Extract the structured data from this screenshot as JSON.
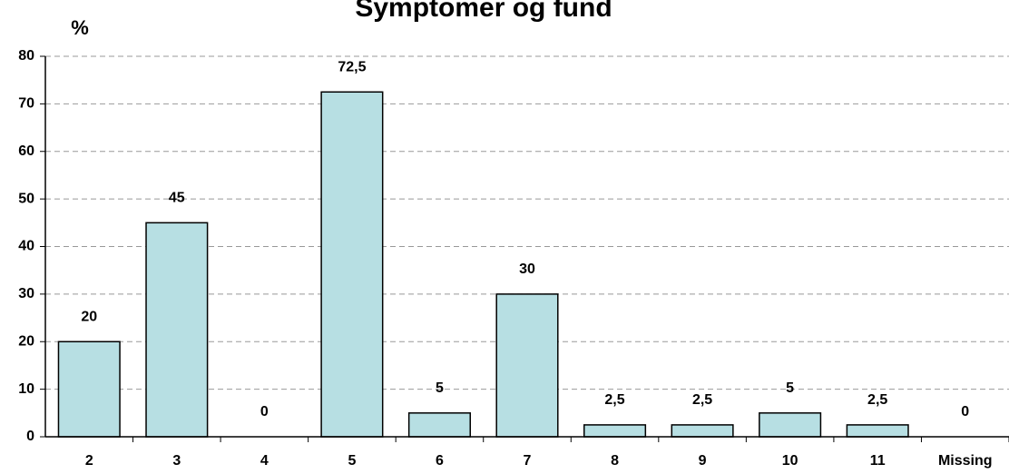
{
  "chart_data": {
    "type": "bar",
    "title": "Symptomer og fund",
    "y_label": "%",
    "categories": [
      "2",
      "3",
      "4",
      "5",
      "6",
      "7",
      "8",
      "9",
      "10",
      "11",
      "Missing"
    ],
    "values": [
      20,
      45,
      0,
      72.5,
      5,
      30,
      2.5,
      2.5,
      5,
      2.5,
      0
    ],
    "value_labels": [
      "20",
      "45",
      "0",
      "72,5",
      "5",
      "30",
      "2,5",
      "2,5",
      "5",
      "2,5",
      "0"
    ],
    "color": "#b7dfe3",
    "ylim": [
      0,
      80
    ],
    "yticks": [
      0,
      10,
      20,
      30,
      40,
      50,
      60,
      70,
      80
    ],
    "grid": true
  }
}
